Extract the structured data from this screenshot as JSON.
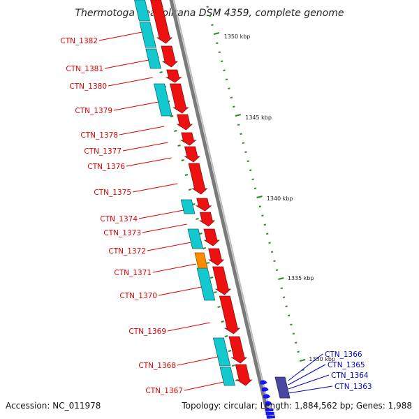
{
  "title": "Thermotoga neapolitana DSM 4359, complete genome",
  "footer": {
    "accession": "Accession: NC_011978",
    "summary": "Topology: circular; Length: 1,884,562 bp; Genes: 1,988"
  },
  "colors": {
    "forward_gene": "#ee1111",
    "reverse_gene": "#14c8cf",
    "rna_gene": "#ff8c00",
    "other_strand_gene": "#4a47a3",
    "tick": "#2e8b22",
    "backbone": "#7a7a7a",
    "label_red": "#dd0000",
    "label_blue": "#0000c0"
  },
  "scale_ticks": [
    "1350 kbp",
    "1345 kbp",
    "1340 kbp",
    "1335 kbp",
    "1330 kbp"
  ],
  "genes_left": [
    "CTN_1382",
    "CTN_1381",
    "CTN_1380",
    "CTN_1379",
    "CTN_1378",
    "CTN_1377",
    "CTN_1376",
    "CTN_1375",
    "CTN_1374",
    "CTN_1373",
    "CTN_1372",
    "CTN_1371",
    "CTN_1370",
    "CTN_1369",
    "CTN_1368",
    "CTN_1367"
  ],
  "genes_right": [
    "CTN_1366",
    "CTN_1365",
    "CTN_1364",
    "CTN_1363"
  ]
}
